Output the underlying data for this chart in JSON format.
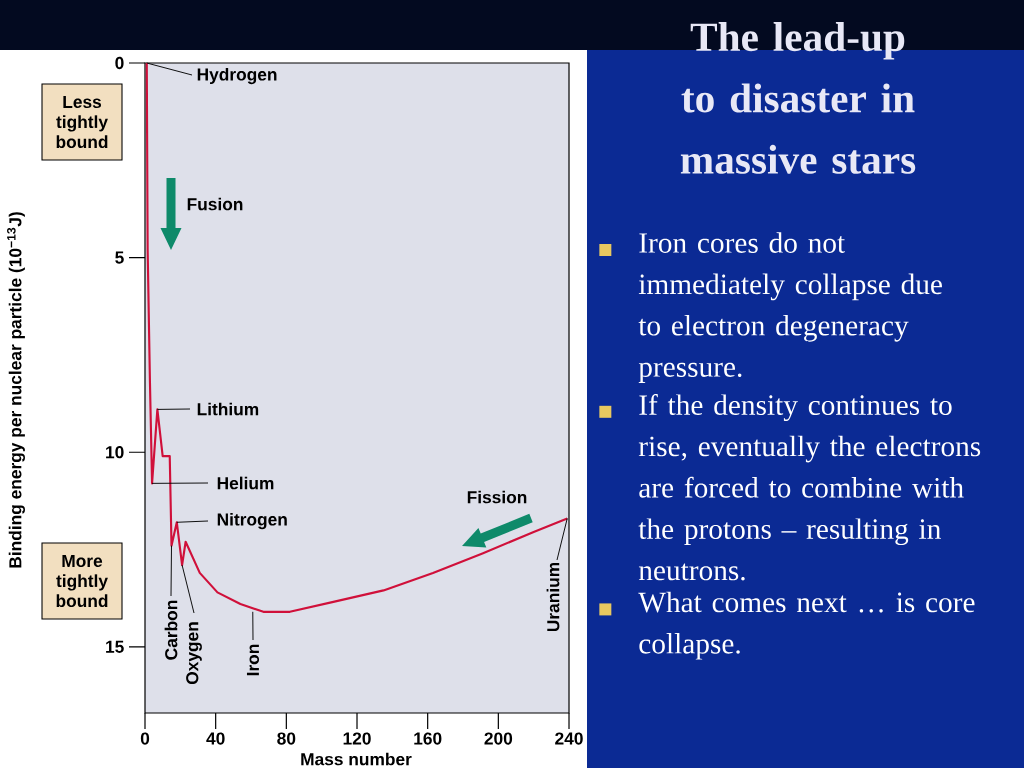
{
  "chart_data": {
    "type": "line",
    "title": "The lead-up to disaster in massive stars",
    "xlabel": "Mass number",
    "ylabel": "Binding energy per nuclear particle (10$^{−13}$J)",
    "x": [
      1,
      1.5,
      2.8,
      4,
      7,
      10,
      14,
      15,
      18,
      21,
      23,
      31,
      41,
      54,
      67,
      82,
      106,
      135,
      163,
      191,
      220,
      239
    ],
    "values": [
      0,
      4.8,
      8.2,
      10.8,
      8.9,
      10.1,
      10.1,
      12.4,
      11.8,
      12.9,
      12.3,
      13.1,
      13.6,
      13.9,
      14.1,
      14.1,
      13.85,
      13.55,
      13.1,
      12.6,
      12.05,
      11.7
    ],
    "color": "#d0103a",
    "xlim": [
      0,
      240
    ],
    "ylim": [
      16.7,
      0
    ],
    "xticks": [
      0,
      40,
      80,
      120,
      160,
      200,
      240
    ],
    "yticks": [
      0,
      5,
      10,
      15
    ],
    "annotations": [
      {
        "text": "Hydrogen",
        "x": 1,
        "y": 0
      },
      {
        "text": "Lithium",
        "x": 7,
        "y": 8.9
      },
      {
        "text": "Helium",
        "x": 4,
        "y": 10.8
      },
      {
        "text": "Nitrogen",
        "x": 18,
        "y": 11.8
      },
      {
        "text": "Carbon",
        "x": 15,
        "y": 12.4
      },
      {
        "text": "Oxygen",
        "x": 21,
        "y": 12.9
      },
      {
        "text": "Iron",
        "x": 61,
        "y": 14.1
      },
      {
        "text": "Uranium",
        "x": 239,
        "y": 11.7
      },
      "Fusion",
      "Fission",
      "Less tightly bound",
      "More tightly bound",
      "Iron cores do not immediately collapse due to electron degeneracy pressure.",
      "If the density continues to rise, eventually the electrons are forced to combine with the protons – resulting in neutrons.",
      "What comes next … is core collapse."
    ]
  }
}
